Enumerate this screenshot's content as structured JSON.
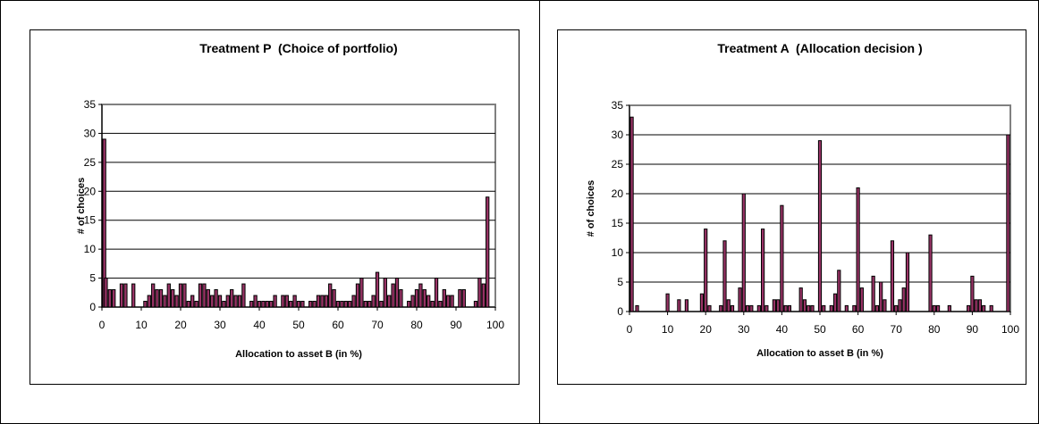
{
  "chart_data": [
    {
      "type": "bar",
      "title": "Treatment P  (Choice of portfolio)",
      "xlabel": "Allocation to asset B (in %)",
      "ylabel": "# of choices",
      "ylim": [
        0,
        35
      ],
      "yticks": [
        0,
        5,
        10,
        15,
        20,
        25,
        30,
        35
      ],
      "xlim": [
        0,
        100
      ],
      "xticks": [
        0,
        10,
        20,
        30,
        40,
        50,
        60,
        70,
        80,
        90,
        100
      ],
      "grid": true,
      "legend": "none",
      "bar_color": "#993366",
      "x": [
        0,
        1,
        2,
        3,
        4,
        5,
        6,
        7,
        8,
        9,
        10,
        11,
        12,
        13,
        14,
        15,
        16,
        17,
        18,
        19,
        20,
        21,
        22,
        23,
        24,
        25,
        26,
        27,
        28,
        29,
        30,
        31,
        32,
        33,
        34,
        35,
        36,
        37,
        38,
        39,
        40,
        41,
        42,
        43,
        44,
        45,
        46,
        47,
        48,
        49,
        50,
        51,
        52,
        53,
        54,
        55,
        56,
        57,
        58,
        59,
        60,
        61,
        62,
        63,
        64,
        65,
        66,
        67,
        68,
        69,
        70,
        71,
        72,
        73,
        74,
        75,
        76,
        77,
        78,
        79,
        80,
        81,
        82,
        83,
        84,
        85,
        86,
        87,
        88,
        89,
        90,
        91,
        92,
        93,
        94,
        95,
        96,
        97,
        98,
        99,
        100
      ],
      "values": [
        29,
        5,
        3,
        3,
        0,
        4,
        4,
        0,
        4,
        0,
        0,
        1,
        2,
        4,
        3,
        3,
        2,
        4,
        3,
        2,
        4,
        4,
        1,
        2,
        1,
        4,
        4,
        3,
        2,
        3,
        2,
        1,
        2,
        3,
        2,
        2,
        4,
        0,
        1,
        2,
        1,
        1,
        1,
        1,
        2,
        0,
        2,
        2,
        1,
        2,
        1,
        1,
        0,
        1,
        1,
        2,
        2,
        2,
        4,
        3,
        1,
        1,
        1,
        1,
        2,
        4,
        5,
        1,
        1,
        2,
        6,
        1,
        5,
        2,
        4,
        5,
        3,
        0,
        1,
        2,
        3,
        4,
        3,
        2,
        1,
        5,
        1,
        3,
        2,
        2,
        0,
        3,
        3,
        0,
        0,
        1,
        5,
        4,
        19,
        0,
        0
      ]
    },
    {
      "type": "bar",
      "title": "Treatment A  (Allocation decision )",
      "xlabel": "Allocation to asset B (in %)",
      "ylabel": "# of choices",
      "ylim": [
        0,
        35
      ],
      "yticks": [
        0,
        5,
        10,
        15,
        20,
        25,
        30,
        35
      ],
      "xlim": [
        0,
        100
      ],
      "xticks": [
        0,
        10,
        20,
        30,
        40,
        50,
        60,
        70,
        80,
        90,
        100
      ],
      "grid": true,
      "legend": "none",
      "bar_color": "#993366",
      "x": [
        0,
        2,
        10,
        13,
        15,
        19,
        20,
        21,
        24,
        25,
        26,
        27,
        29,
        30,
        31,
        32,
        34,
        35,
        36,
        37,
        38,
        39,
        40,
        41,
        42,
        45,
        46,
        47,
        48,
        50,
        51,
        53,
        54,
        55,
        57,
        59,
        60,
        61,
        64,
        65,
        66,
        67,
        69,
        70,
        71,
        72,
        73,
        74,
        75,
        79,
        80,
        81,
        84,
        89,
        90,
        91,
        92,
        93,
        95,
        100
      ],
      "values": [
        33,
        1,
        3,
        2,
        2,
        3,
        14,
        1,
        1,
        12,
        2,
        1,
        4,
        20,
        1,
        1,
        1,
        14,
        1,
        0,
        2,
        2,
        18,
        1,
        1,
        4,
        2,
        1,
        1,
        29,
        1,
        1,
        3,
        7,
        1,
        1,
        21,
        4,
        6,
        1,
        5,
        2,
        12,
        1,
        2,
        4,
        10,
        0,
        0,
        13,
        1,
        1,
        1,
        1,
        6,
        2,
        2,
        1,
        1,
        30
      ]
    }
  ]
}
